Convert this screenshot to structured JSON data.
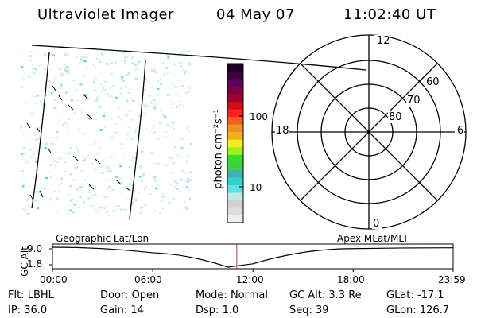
{
  "header": {
    "title": "Ultraviolet Imager",
    "date": "04 May 07",
    "time": "11:02:40 UT"
  },
  "colorbar": {
    "unit_label": "photon cm⁻²s⁻¹",
    "ticks": [
      "100",
      "10"
    ],
    "colors": [
      "#eeeeee",
      "#dddddd",
      "#d0d0d0",
      "#c0e8e8",
      "#60e0e0",
      "#30d0d0",
      "#40b0b0",
      "#40d040",
      "#30e030",
      "#a0f020",
      "#f0f020",
      "#f0b020",
      "#f09020",
      "#f06020",
      "#ff2020",
      "#d01010",
      "#a00030",
      "#800040",
      "#600060",
      "#400040",
      "#200020"
    ]
  },
  "polar": {
    "mlt_labels": {
      "top": "12",
      "left": "18",
      "right": "6",
      "bottom": "0"
    },
    "lat_labels": [
      "60",
      "70",
      "80"
    ]
  },
  "altitude_panel": {
    "left_title": "Geographic Lat/Lon",
    "right_title": "Apex MLat/MLT",
    "ylabel": "GC Alt",
    "yticks": [
      "9.0",
      "1.8"
    ],
    "xticks": [
      "00:00",
      "06:00",
      "12:00",
      "18:00",
      "23:59"
    ]
  },
  "status": {
    "row1": [
      {
        "key": "Flt:",
        "val": "LBHL"
      },
      {
        "key": "Door:",
        "val": "Open"
      },
      {
        "key": "Mode:",
        "val": "Normal"
      },
      {
        "key": "GC Alt:",
        "val": "3.3 Re"
      },
      {
        "key": "GLat:",
        "val": "-17.1"
      }
    ],
    "row2": [
      {
        "key": "IP:",
        "val": "36.0"
      },
      {
        "key": "Gain:",
        "val": "14"
      },
      {
        "key": "Dsp:",
        "val": "1.0"
      },
      {
        "key": "Seq:",
        "val": "39"
      },
      {
        "key": "GLon:",
        "val": "126.7"
      }
    ]
  },
  "chart_data": {
    "type": "line",
    "title": "",
    "xlabel": "",
    "ylabel": "GC Alt",
    "xlim": [
      "00:00",
      "23:59"
    ],
    "ylim": [
      1.8,
      9.0
    ],
    "x": [
      "00:00",
      "06:00",
      "10:30",
      "12:00",
      "18:00",
      "23:59"
    ],
    "series": [
      {
        "values": [
          9.0,
          7.0,
          1.8,
          3.0,
          8.5,
          8.8
        ]
      }
    ],
    "current_time_marker": "11:02"
  }
}
